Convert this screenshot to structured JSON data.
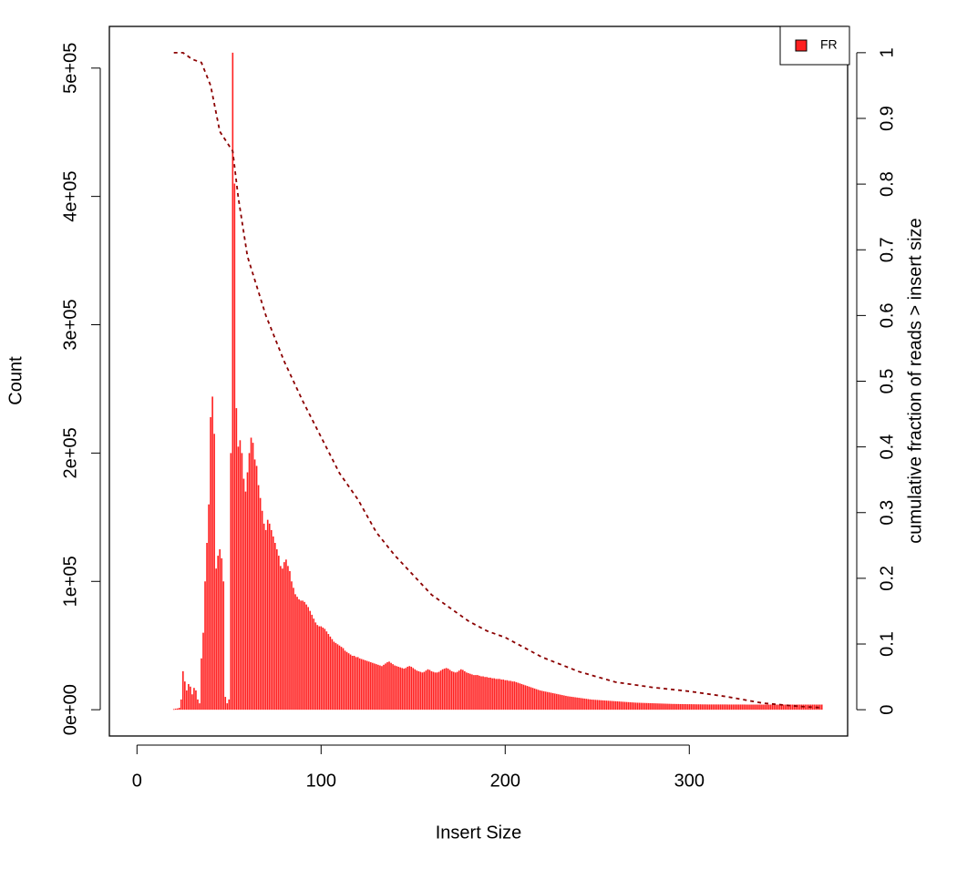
{
  "chart_data": {
    "type": "bar",
    "xlabel": "Insert Size",
    "ylabel": "Count",
    "y2label": "cumulative fraction of reads > insert size",
    "xlim": [
      -15,
      386
    ],
    "ylim": [
      -20480,
      532480
    ],
    "y2lim": [
      -0.04,
      1.04
    ],
    "xticks": [
      0,
      100,
      200,
      300
    ],
    "yticks": [
      {
        "value": 0,
        "label": "0e+00"
      },
      {
        "value": 100000,
        "label": "1e+05"
      },
      {
        "value": 200000,
        "label": "2e+05"
      },
      {
        "value": 300000,
        "label": "3e+05"
      },
      {
        "value": 400000,
        "label": "4e+05"
      },
      {
        "value": 500000,
        "label": "5e+05"
      }
    ],
    "y2ticks": [
      0,
      0.1,
      0.2,
      0.3,
      0.4,
      0.5,
      0.6,
      0.7,
      0.8,
      0.9,
      1
    ],
    "legend": "top right",
    "series": [
      {
        "name": "FR",
        "color": "#ff2020",
        "x": [
          20,
          21,
          22,
          23,
          24,
          25,
          26,
          27,
          28,
          29,
          30,
          31,
          32,
          33,
          34,
          35,
          36,
          37,
          38,
          39,
          40,
          41,
          42,
          43,
          44,
          45,
          46,
          47,
          48,
          49,
          50,
          51,
          52,
          53,
          54,
          55,
          56,
          57,
          58,
          59,
          60,
          61,
          62,
          63,
          64,
          65,
          66,
          67,
          68,
          69,
          70,
          71,
          72,
          73,
          74,
          75,
          76,
          77,
          78,
          79,
          80,
          81,
          82,
          83,
          84,
          85,
          86,
          87,
          88,
          89,
          90,
          91,
          92,
          93,
          94,
          95,
          96,
          97,
          98,
          99,
          100,
          101,
          102,
          103,
          104,
          105,
          106,
          107,
          108,
          109,
          110,
          111,
          112,
          113,
          114,
          115,
          116,
          117,
          118,
          119,
          120,
          121,
          122,
          123,
          124,
          125,
          126,
          127,
          128,
          129,
          130,
          131,
          132,
          133,
          134,
          135,
          136,
          137,
          138,
          139,
          140,
          141,
          142,
          143,
          144,
          145,
          146,
          147,
          148,
          149,
          150,
          151,
          152,
          153,
          154,
          155,
          156,
          157,
          158,
          159,
          160,
          161,
          162,
          163,
          164,
          165,
          166,
          167,
          168,
          169,
          170,
          171,
          172,
          173,
          174,
          175,
          176,
          177,
          178,
          179,
          180,
          181,
          182,
          183,
          184,
          185,
          186,
          187,
          188,
          189,
          190,
          191,
          192,
          193,
          194,
          195,
          196,
          197,
          198,
          199,
          200,
          201,
          202,
          203,
          204,
          205,
          206,
          207,
          208,
          209,
          210,
          211,
          212,
          213,
          214,
          215,
          216,
          217,
          218,
          219,
          220,
          221,
          222,
          223,
          224,
          225,
          226,
          227,
          228,
          229,
          230,
          231,
          232,
          233,
          234,
          235,
          236,
          237,
          238,
          239,
          240,
          241,
          242,
          243,
          244,
          245,
          246,
          247,
          248,
          249,
          250,
          251,
          252,
          253,
          254,
          255,
          256,
          257,
          258,
          259,
          260,
          261,
          262,
          263,
          264,
          265,
          266,
          267,
          268,
          269,
          270,
          271,
          272,
          273,
          274,
          275,
          276,
          277,
          278,
          279,
          280,
          281,
          282,
          283,
          284,
          285,
          286,
          287,
          288,
          289,
          290,
          291,
          292,
          293,
          294,
          295,
          296,
          297,
          298,
          299,
          300,
          301,
          302,
          303,
          304,
          305,
          306,
          307,
          308,
          309,
          310,
          311,
          312,
          313,
          314,
          315,
          316,
          317,
          318,
          319,
          320,
          321,
          322,
          323,
          324,
          325,
          326,
          327,
          328,
          329,
          330,
          331,
          332,
          333,
          334,
          335,
          336,
          337,
          338,
          339,
          340,
          341,
          342,
          343,
          344,
          345,
          346,
          347,
          348,
          349,
          350,
          351,
          352,
          353,
          354,
          355,
          356,
          357,
          358,
          359,
          360,
          361,
          362,
          363,
          364,
          365,
          366,
          367,
          368,
          369,
          370,
          371,
          372
        ],
        "values": [
          500,
          800,
          1000,
          1500,
          8000,
          30000,
          22000,
          15000,
          20000,
          18000,
          12000,
          17000,
          15000,
          8000,
          5000,
          40000,
          60000,
          100000,
          130000,
          160000,
          228000,
          244000,
          215000,
          110000,
          120000,
          125000,
          118000,
          100000,
          10000,
          5000,
          8000,
          200000,
          512000,
          410000,
          235000,
          205000,
          210000,
          200000,
          180000,
          170000,
          185000,
          200000,
          212000,
          208000,
          195000,
          190000,
          175000,
          165000,
          155000,
          145000,
          140000,
          148000,
          145000,
          140000,
          135000,
          130000,
          125000,
          120000,
          112000,
          110000,
          115000,
          117000,
          112000,
          108000,
          100000,
          95000,
          90000,
          88000,
          86000,
          85000,
          85000,
          84000,
          82000,
          80000,
          77000,
          74000,
          71000,
          68000,
          66000,
          65000,
          65000,
          64000,
          63000,
          61000,
          59000,
          57000,
          55000,
          53000,
          52000,
          51000,
          50000,
          49000,
          48000,
          46000,
          45000,
          44000,
          43000,
          42000,
          42000,
          41000,
          41000,
          40000,
          39500,
          39000,
          38500,
          38000,
          37500,
          37000,
          36500,
          36000,
          35500,
          35000,
          34500,
          34000,
          35000,
          36000,
          37000,
          37500,
          36500,
          35500,
          34500,
          34000,
          33500,
          33000,
          32500,
          32000,
          32500,
          33500,
          34000,
          33500,
          32500,
          31500,
          30500,
          30000,
          29500,
          29000,
          29500,
          30500,
          31500,
          31000,
          30000,
          29500,
          29000,
          29000,
          29500,
          30500,
          31500,
          32000,
          32500,
          32000,
          31000,
          30000,
          29500,
          29000,
          29500,
          30500,
          31500,
          31000,
          30000,
          29000,
          28500,
          28000,
          27500,
          27000,
          27000,
          27000,
          26500,
          26000,
          26000,
          25500,
          25500,
          25000,
          25000,
          24500,
          24500,
          24000,
          24000,
          24000,
          23500,
          23500,
          23000,
          23000,
          22500,
          22500,
          22000,
          22000,
          21500,
          21000,
          20500,
          20000,
          19500,
          19000,
          18500,
          18000,
          17500,
          17000,
          16500,
          16000,
          15500,
          15000,
          14700,
          14400,
          14100,
          13800,
          13500,
          13200,
          12900,
          12600,
          12300,
          12000,
          11700,
          11400,
          11100,
          10800,
          10500,
          10300,
          10100,
          9900,
          9700,
          9500,
          9300,
          9100,
          8900,
          8700,
          8500,
          8300,
          8100,
          7900,
          7800,
          7700,
          7600,
          7500,
          7400,
          7300,
          7200,
          7100,
          7000,
          6900,
          6800,
          6700,
          6600,
          6500,
          6400,
          6300,
          6200,
          6100,
          6000,
          5900,
          5800,
          5700,
          5600,
          5500,
          5450,
          5400,
          5350,
          5300,
          5250,
          5200,
          5150,
          5100,
          5050,
          5000,
          4950,
          4900,
          4850,
          4800,
          4750,
          4700,
          4650,
          4600,
          4550,
          4500,
          4500,
          4450,
          4450,
          4400,
          4400,
          4350,
          4350,
          4300,
          4300,
          4300,
          4250,
          4250,
          4200,
          4200,
          4200,
          4150,
          4150,
          4150,
          4100,
          4100,
          4100,
          4100,
          4100,
          4100,
          4100,
          4100,
          4100,
          4100,
          4100,
          4050,
          4050,
          4050,
          4050,
          4050,
          4050,
          4050,
          4050,
          4050,
          4050,
          4000,
          4000,
          4000,
          4000,
          4000,
          4000,
          4000,
          4000,
          4000,
          4000,
          4000,
          4000,
          4000,
          4000,
          4000,
          4000,
          4000,
          4000,
          4000,
          4000,
          4000,
          4000,
          4000,
          4000,
          4000,
          4000,
          4000,
          4000,
          4000,
          4000,
          4000,
          4000,
          4000,
          4000,
          4000,
          4000,
          4000,
          4000,
          4000,
          4000,
          4000,
          4000
        ]
      },
      {
        "type": "line",
        "axis": "y2",
        "color": "#8b0000",
        "dashed": true,
        "x": [
          20,
          25,
          30,
          35,
          40,
          45,
          52,
          55,
          60,
          70,
          80,
          90,
          100,
          110,
          120,
          130,
          140,
          150,
          160,
          170,
          180,
          190,
          200,
          220,
          240,
          260,
          280,
          300,
          320,
          340,
          360,
          372
        ],
        "values": [
          1,
          1,
          0.99,
          0.985,
          0.95,
          0.88,
          0.85,
          0.78,
          0.69,
          0.6,
          0.53,
          0.47,
          0.415,
          0.36,
          0.32,
          0.27,
          0.235,
          0.205,
          0.175,
          0.155,
          0.135,
          0.12,
          0.11,
          0.08,
          0.058,
          0.042,
          0.034,
          0.028,
          0.02,
          0.01,
          0.005,
          0.003
        ]
      }
    ]
  }
}
